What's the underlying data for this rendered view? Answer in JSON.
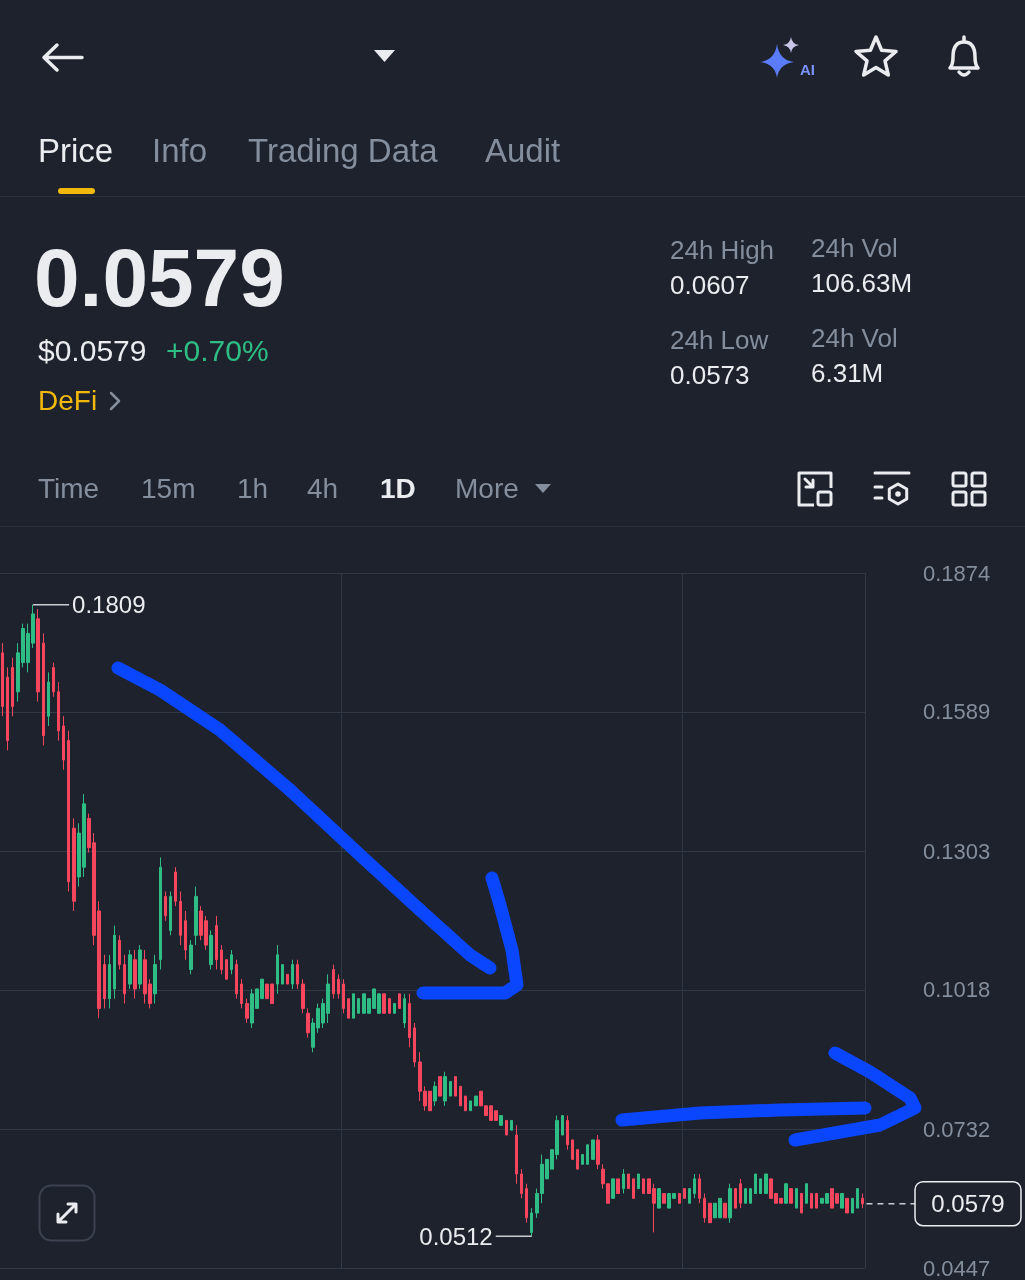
{
  "chart_data": {
    "type": "candlestick",
    "categories": [
      null,
      null,
      null,
      null,
      null,
      null,
      null,
      null,
      null,
      null,
      null,
      null,
      null,
      null,
      null,
      null,
      null,
      null,
      null,
      null,
      null,
      null,
      null,
      null,
      null,
      null,
      null,
      null,
      null,
      null,
      null,
      null,
      null,
      null,
      null,
      null,
      null,
      null,
      null,
      null,
      null,
      null,
      null,
      null,
      null,
      null,
      null,
      null,
      null,
      null,
      null,
      null,
      null,
      null,
      null,
      null,
      null,
      null,
      null,
      null,
      null,
      null,
      null,
      null,
      null,
      null,
      null,
      null,
      null,
      null,
      null,
      null,
      null,
      null,
      null,
      null,
      null,
      null,
      null,
      null,
      null,
      null,
      null,
      null,
      null,
      null,
      null,
      null,
      null,
      null,
      null,
      null,
      null,
      null,
      null,
      null,
      null,
      null,
      null,
      null,
      null,
      null,
      null,
      null,
      null,
      null,
      null,
      null,
      null,
      null,
      null,
      null,
      null,
      null,
      null,
      null,
      null,
      null,
      null,
      null,
      null,
      null,
      null,
      null,
      null,
      null,
      null,
      null,
      null,
      null,
      null,
      null,
      null,
      null,
      null,
      null,
      null,
      null,
      null,
      null,
      null,
      null,
      null,
      null,
      null,
      null,
      null,
      null,
      null,
      null,
      null,
      null,
      null,
      null,
      null,
      null,
      null,
      null,
      null,
      null,
      null,
      null,
      null,
      null,
      null,
      null,
      null,
      null,
      null,
      null
    ],
    "ohlc": [
      [
        0.171,
        0.173,
        0.158,
        0.16
      ],
      [
        0.166,
        0.168,
        0.151,
        0.153
      ],
      [
        0.168,
        0.17,
        0.158,
        0.16
      ],
      [
        0.163,
        0.173,
        0.161,
        0.171
      ],
      [
        0.169,
        0.177,
        0.168,
        0.176
      ],
      [
        0.169,
        0.177,
        0.167,
        0.175
      ],
      [
        0.173,
        0.1809,
        0.172,
        0.179
      ],
      [
        0.178,
        0.18,
        0.161,
        0.163
      ],
      [
        0.173,
        0.175,
        0.152,
        0.154
      ],
      [
        0.158,
        0.167,
        0.156,
        0.165
      ],
      [
        0.168,
        0.169,
        0.162,
        0.163
      ],
      [
        0.163,
        0.165,
        0.153,
        0.155
      ],
      [
        0.156,
        0.158,
        0.147,
        0.149
      ],
      [
        0.153,
        0.155,
        0.122,
        0.124
      ],
      [
        0.135,
        0.137,
        0.118,
        0.12
      ],
      [
        0.125,
        0.136,
        0.123,
        0.134
      ],
      [
        0.127,
        0.142,
        0.125,
        0.14
      ],
      [
        0.137,
        0.138,
        0.13,
        0.131
      ],
      [
        0.132,
        0.134,
        0.111,
        0.113
      ],
      [
        0.118,
        0.12,
        0.096,
        0.098
      ],
      [
        0.107,
        0.109,
        0.098,
        0.1
      ],
      [
        0.1,
        0.109,
        0.098,
        0.107
      ],
      [
        0.102,
        0.115,
        0.1,
        0.113
      ],
      [
        0.112,
        0.113,
        0.106,
        0.107
      ],
      [
        0.107,
        0.109,
        0.099,
        0.101
      ],
      [
        0.103,
        0.11,
        0.102,
        0.109
      ],
      [
        0.108,
        0.11,
        0.1,
        0.102
      ],
      [
        0.103,
        0.111,
        0.102,
        0.11
      ],
      [
        0.108,
        0.11,
        0.099,
        0.101
      ],
      [
        0.103,
        0.104,
        0.098,
        0.099
      ],
      [
        0.101,
        0.109,
        0.099,
        0.107
      ],
      [
        0.108,
        0.129,
        0.106,
        0.127
      ],
      [
        0.121,
        0.122,
        0.116,
        0.117
      ],
      [
        0.114,
        0.122,
        0.113,
        0.121
      ],
      [
        0.126,
        0.127,
        0.119,
        0.12
      ],
      [
        0.12,
        0.122,
        0.111,
        0.113
      ],
      [
        0.116,
        0.118,
        0.108,
        0.11
      ],
      [
        0.106,
        0.112,
        0.105,
        0.111
      ],
      [
        0.113,
        0.123,
        0.111,
        0.121
      ],
      [
        0.118,
        0.119,
        0.112,
        0.113
      ],
      [
        0.116,
        0.117,
        0.11,
        0.111
      ],
      [
        0.107,
        0.114,
        0.106,
        0.113
      ],
      [
        0.115,
        0.117,
        0.106,
        0.108
      ],
      [
        0.11,
        0.111,
        0.105,
        0.106
      ],
      [
        0.108,
        0.108,
        0.104,
        0.104
      ],
      [
        0.106,
        0.11,
        0.105,
        0.109
      ],
      [
        0.107,
        0.108,
        0.1,
        0.101
      ],
      [
        0.103,
        0.104,
        0.098,
        0.099
      ],
      [
        0.099,
        0.1,
        0.095,
        0.096
      ],
      [
        0.095,
        0.102,
        0.094,
        0.101
      ],
      [
        0.098,
        0.102,
        0.098,
        0.102
      ],
      [
        0.1,
        0.104,
        0.1,
        0.104
      ],
      [
        0.103,
        0.103,
        0.1,
        0.1
      ],
      [
        0.103,
        0.103,
        0.099,
        0.099
      ],
      [
        0.103,
        0.111,
        0.101,
        0.109
      ],
      [
        0.103,
        0.107,
        0.103,
        0.107
      ],
      [
        0.105,
        0.105,
        0.103,
        0.103
      ],
      [
        0.103,
        0.108,
        0.102,
        0.107
      ],
      [
        0.107,
        0.108,
        0.102,
        0.103
      ],
      [
        0.103,
        0.104,
        0.097,
        0.098
      ],
      [
        0.097,
        0.098,
        0.092,
        0.093
      ],
      [
        0.09,
        0.096,
        0.089,
        0.095
      ],
      [
        0.094,
        0.099,
        0.093,
        0.098
      ],
      [
        0.095,
        0.1,
        0.094,
        0.099
      ],
      [
        0.097,
        0.105,
        0.095,
        0.103
      ],
      [
        0.106,
        0.107,
        0.1,
        0.101
      ],
      [
        0.104,
        0.105,
        0.1,
        0.101
      ],
      [
        0.103,
        0.104,
        0.097,
        0.098
      ],
      [
        0.1,
        0.1,
        0.096,
        0.096
      ],
      [
        0.096,
        0.101,
        0.096,
        0.101
      ],
      [
        0.097,
        0.1,
        0.097,
        0.1
      ],
      [
        0.097,
        0.101,
        0.097,
        0.101
      ],
      [
        0.097,
        0.1,
        0.097,
        0.1
      ],
      [
        0.098,
        0.102,
        0.098,
        0.102
      ],
      [
        0.097,
        0.101,
        0.097,
        0.101
      ],
      [
        0.101,
        0.101,
        0.097,
        0.097
      ],
      [
        0.1,
        0.1,
        0.097,
        0.097
      ],
      [
        0.097,
        0.099,
        0.097,
        0.099
      ],
      [
        0.101,
        0.101,
        0.098,
        0.098
      ],
      [
        0.095,
        0.101,
        0.094,
        0.1
      ],
      [
        0.099,
        0.101,
        0.09,
        0.092
      ],
      [
        0.094,
        0.095,
        0.086,
        0.087
      ],
      [
        0.087,
        0.089,
        0.079,
        0.081
      ],
      [
        0.081,
        0.082,
        0.077,
        0.078
      ],
      [
        0.081,
        0.081,
        0.077,
        0.077
      ],
      [
        0.079,
        0.083,
        0.078,
        0.082
      ],
      [
        0.084,
        0.084,
        0.08,
        0.08
      ],
      [
        0.079,
        0.085,
        0.078,
        0.084
      ],
      [
        0.08,
        0.083,
        0.08,
        0.083
      ],
      [
        0.084,
        0.084,
        0.08,
        0.08
      ],
      [
        0.082,
        0.082,
        0.078,
        0.078
      ],
      [
        0.08,
        0.08,
        0.077,
        0.077
      ],
      [
        0.077,
        0.079,
        0.077,
        0.079
      ],
      [
        0.078,
        0.08,
        0.078,
        0.08
      ],
      [
        0.081,
        0.081,
        0.078,
        0.078
      ],
      [
        0.078,
        0.078,
        0.076,
        0.076
      ],
      [
        0.078,
        0.078,
        0.075,
        0.075
      ],
      [
        0.077,
        0.077,
        0.075,
        0.075
      ],
      [
        0.074,
        0.076,
        0.074,
        0.076
      ],
      [
        0.075,
        0.075,
        0.072,
        0.072
      ],
      [
        0.073,
        0.075,
        0.073,
        0.075
      ],
      [
        0.072,
        0.074,
        0.062,
        0.064
      ],
      [
        0.064,
        0.065,
        0.059,
        0.06
      ],
      [
        0.061,
        0.062,
        0.054,
        0.055
      ],
      [
        0.052,
        0.057,
        0.0512,
        0.056
      ],
      [
        0.056,
        0.061,
        0.055,
        0.06
      ],
      [
        0.06,
        0.068,
        0.058,
        0.066
      ],
      [
        0.063,
        0.067,
        0.063,
        0.067
      ],
      [
        0.065,
        0.069,
        0.065,
        0.069
      ],
      [
        0.068,
        0.076,
        0.067,
        0.075
      ],
      [
        0.072,
        0.076,
        0.072,
        0.076
      ],
      [
        0.075,
        0.076,
        0.069,
        0.07
      ],
      [
        0.071,
        0.071,
        0.067,
        0.067
      ],
      [
        0.069,
        0.069,
        0.065,
        0.065
      ],
      [
        0.066,
        0.068,
        0.066,
        0.068
      ],
      [
        0.066,
        0.07,
        0.066,
        0.07
      ],
      [
        0.067,
        0.071,
        0.067,
        0.071
      ],
      [
        0.071,
        0.072,
        0.065,
        0.066
      ],
      [
        0.065,
        0.066,
        0.061,
        0.062
      ],
      [
        0.062,
        0.062,
        0.058,
        0.058
      ],
      [
        0.059,
        0.063,
        0.059,
        0.063
      ],
      [
        0.063,
        0.063,
        0.06,
        0.06
      ],
      [
        0.061,
        0.065,
        0.06,
        0.064
      ],
      [
        0.064,
        0.064,
        0.061,
        0.061
      ],
      [
        0.063,
        0.063,
        0.059,
        0.059
      ],
      [
        0.061,
        0.064,
        0.061,
        0.064
      ],
      [
        0.063,
        0.063,
        0.06,
        0.06
      ],
      [
        0.063,
        0.063,
        0.06,
        0.06
      ],
      [
        0.061,
        0.062,
        0.052,
        0.058
      ],
      [
        0.057,
        0.061,
        0.057,
        0.061
      ],
      [
        0.06,
        0.06,
        0.058,
        0.058
      ],
      [
        0.057,
        0.06,
        0.057,
        0.06
      ],
      [
        0.059,
        0.06,
        0.059,
        0.06
      ],
      [
        0.06,
        0.06,
        0.058,
        0.058
      ],
      [
        0.061,
        0.061,
        0.059,
        0.059
      ],
      [
        0.058,
        0.061,
        0.058,
        0.061
      ],
      [
        0.06,
        0.064,
        0.059,
        0.063
      ],
      [
        0.063,
        0.064,
        0.058,
        0.059
      ],
      [
        0.059,
        0.06,
        0.054,
        0.055
      ],
      [
        0.058,
        0.058,
        0.054,
        0.054
      ],
      [
        0.055,
        0.058,
        0.055,
        0.058
      ],
      [
        0.055,
        0.059,
        0.055,
        0.059
      ],
      [
        0.058,
        0.058,
        0.055,
        0.055
      ],
      [
        0.055,
        0.062,
        0.054,
        0.061
      ],
      [
        0.061,
        0.061,
        0.057,
        0.057
      ],
      [
        0.062,
        0.063,
        0.057,
        0.058
      ],
      [
        0.058,
        0.061,
        0.058,
        0.061
      ],
      [
        0.058,
        0.061,
        0.058,
        0.061
      ],
      [
        0.06,
        0.064,
        0.06,
        0.064
      ],
      [
        0.06,
        0.063,
        0.06,
        0.063
      ],
      [
        0.06,
        0.064,
        0.06,
        0.064
      ],
      [
        0.063,
        0.063,
        0.059,
        0.059
      ],
      [
        0.06,
        0.06,
        0.058,
        0.058
      ],
      [
        0.059,
        0.059,
        0.058,
        0.058
      ],
      [
        0.058,
        0.062,
        0.058,
        0.062
      ],
      [
        0.061,
        0.061,
        0.058,
        0.058
      ],
      [
        0.057,
        0.061,
        0.057,
        0.061
      ],
      [
        0.06,
        0.06,
        0.056,
        0.056
      ],
      [
        0.058,
        0.062,
        0.058,
        0.062
      ],
      [
        0.06,
        0.06,
        0.057,
        0.057
      ],
      [
        0.06,
        0.06,
        0.057,
        0.057
      ],
      [
        0.058,
        0.059,
        0.058,
        0.059
      ],
      [
        0.058,
        0.06,
        0.058,
        0.06
      ],
      [
        0.061,
        0.061,
        0.057,
        0.057
      ],
      [
        0.06,
        0.06,
        0.058,
        0.058
      ],
      [
        0.057,
        0.06,
        0.057,
        0.06
      ],
      [
        0.059,
        0.059,
        0.056,
        0.056
      ],
      [
        0.056,
        0.059,
        0.056,
        0.059
      ],
      [
        0.057,
        0.061,
        0.057,
        0.061
      ],
      [
        0.059,
        0.06,
        0.057,
        0.0579
      ]
    ],
    "ylim": [
      0.0447,
      0.1874
    ],
    "yticks": [
      0.0447,
      0.0732,
      0.1018,
      0.1303,
      0.1589,
      0.1874
    ],
    "grid": true,
    "tick_labels": "y",
    "ref_lines": [
      {
        "axis": "y",
        "value": 0.0579,
        "label": "0.0579",
        "line_style": "dashed"
      }
    ],
    "annotations": [
      "Price",
      "Info",
      "Trading Data",
      "Audit",
      "0.0579",
      "$0.0579",
      "+0.70%",
      "DeFi",
      "24h High",
      "0.0607",
      "24h Vol",
      "106.63M",
      "24h Low",
      "0.0573",
      "24h Vol",
      "6.31M",
      "Time",
      "15m",
      "1h",
      "4h",
      "1D",
      "More",
      "AI",
      "0.1809",
      "0.0512"
    ]
  }
}
